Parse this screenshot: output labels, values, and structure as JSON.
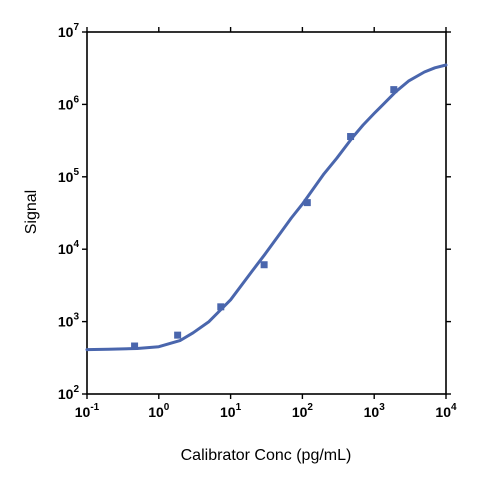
{
  "chart_data": {
    "type": "scatter",
    "xlabel": "Calibrator Conc (pg/mL)",
    "ylabel": "Signal",
    "x_scale": "log",
    "y_scale": "log",
    "xlim": [
      0.1,
      10000
    ],
    "ylim": [
      100,
      10000000
    ],
    "grid": false,
    "x_ticks": [
      {
        "value": 0.1,
        "base": "10",
        "exp": "-1"
      },
      {
        "value": 1,
        "base": "10",
        "exp": "0"
      },
      {
        "value": 10,
        "base": "10",
        "exp": "1"
      },
      {
        "value": 100,
        "base": "10",
        "exp": "2"
      },
      {
        "value": 1000,
        "base": "10",
        "exp": "3"
      },
      {
        "value": 10000,
        "base": "10",
        "exp": "4"
      }
    ],
    "y_ticks": [
      {
        "value": 100,
        "base": "10",
        "exp": "2"
      },
      {
        "value": 1000,
        "base": "10",
        "exp": "3"
      },
      {
        "value": 10000,
        "base": "10",
        "exp": "4"
      },
      {
        "value": 100000,
        "base": "10",
        "exp": "5"
      },
      {
        "value": 1000000,
        "base": "10",
        "exp": "6"
      },
      {
        "value": 10000000,
        "base": "10",
        "exp": "7"
      }
    ],
    "series": [
      {
        "kind": "points",
        "marker": "square",
        "color": "#4a66ad",
        "x": [
          0.46,
          1.83,
          7.3,
          29.3,
          117,
          469,
          1875
        ],
        "y": [
          460,
          650,
          1600,
          6100,
          44000,
          360000,
          1600000
        ]
      },
      {
        "kind": "fitted-curve",
        "color": "#4a66ad",
        "x": [
          0.1,
          0.2,
          0.5,
          1,
          2,
          3,
          5,
          7,
          10,
          20,
          30,
          50,
          70,
          100,
          200,
          300,
          500,
          700,
          1000,
          2000,
          3000,
          5000,
          7000,
          10000
        ],
        "y": [
          410,
          415,
          425,
          450,
          550,
          700,
          1000,
          1400,
          2000,
          5000,
          8500,
          17000,
          27000,
          42000,
          110000,
          180000,
          350000,
          520000,
          750000,
          1500000,
          2100000,
          2800000,
          3200000,
          3500000
        ]
      }
    ]
  }
}
